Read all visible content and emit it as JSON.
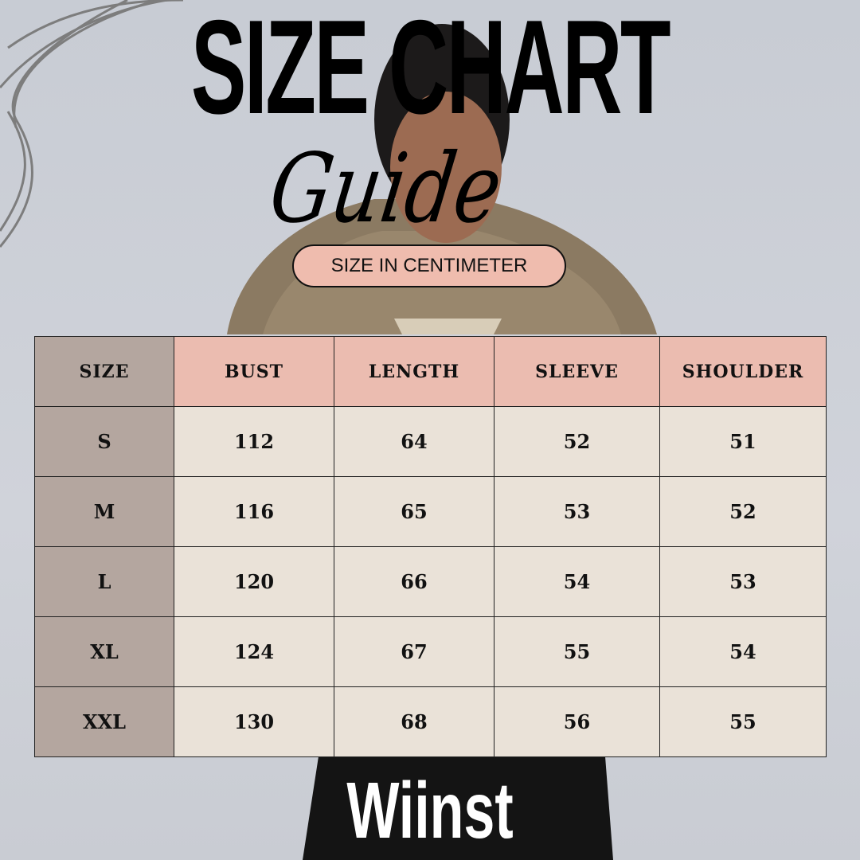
{
  "title": "SIZE CHART",
  "subtitle": "Guide",
  "unit_label": "SIZE IN CENTIMETER",
  "brand": "Wiinst",
  "colors": {
    "header": "#ebbcb0",
    "size_column": "#b4a69f",
    "cell": "#eae2d8",
    "pill": "#efbcae",
    "background": "#c9ccd4"
  },
  "table": {
    "headers": [
      "SIZE",
      "BUST",
      "LENGTH",
      "SLEEVE",
      "SHOULDER"
    ],
    "rows": [
      [
        "S",
        "112",
        "64",
        "52",
        "51"
      ],
      [
        "M",
        "116",
        "65",
        "53",
        "52"
      ],
      [
        "L",
        "120",
        "66",
        "54",
        "53"
      ],
      [
        "XL",
        "124",
        "67",
        "55",
        "54"
      ],
      [
        "XXL",
        "130",
        "68",
        "56",
        "55"
      ]
    ]
  }
}
